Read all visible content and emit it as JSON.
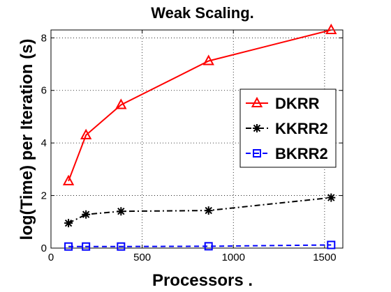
{
  "chart_data": {
    "type": "line",
    "title": "Weak Scaling.",
    "xlabel": "Processors .",
    "ylabel": "log(Time) per Iteration (s)",
    "xlim": [
      0,
      1600
    ],
    "ylim": [
      0,
      8.3
    ],
    "xticks": [
      0,
      500,
      1000,
      1500
    ],
    "yticks": [
      0,
      2,
      4,
      6,
      8
    ],
    "grid": true,
    "legend_position": "right",
    "series": [
      {
        "name": "DKRR",
        "color": "#ff0000",
        "marker": "triangle",
        "linestyle": "solid",
        "x": [
          96,
          192,
          384,
          864,
          1536
        ],
        "y": [
          2.55,
          4.3,
          5.45,
          7.12,
          8.3
        ]
      },
      {
        "name": "KKRR2",
        "color": "#000000",
        "marker": "star",
        "linestyle": "dashdot",
        "x": [
          96,
          192,
          384,
          864,
          1536
        ],
        "y": [
          0.95,
          1.28,
          1.4,
          1.43,
          1.92
        ]
      },
      {
        "name": "BKRR2",
        "color": "#0000ff",
        "marker": "square",
        "linestyle": "dashed",
        "x": [
          96,
          192,
          384,
          864,
          1536
        ],
        "y": [
          0.06,
          0.06,
          0.06,
          0.07,
          0.12
        ]
      }
    ]
  }
}
